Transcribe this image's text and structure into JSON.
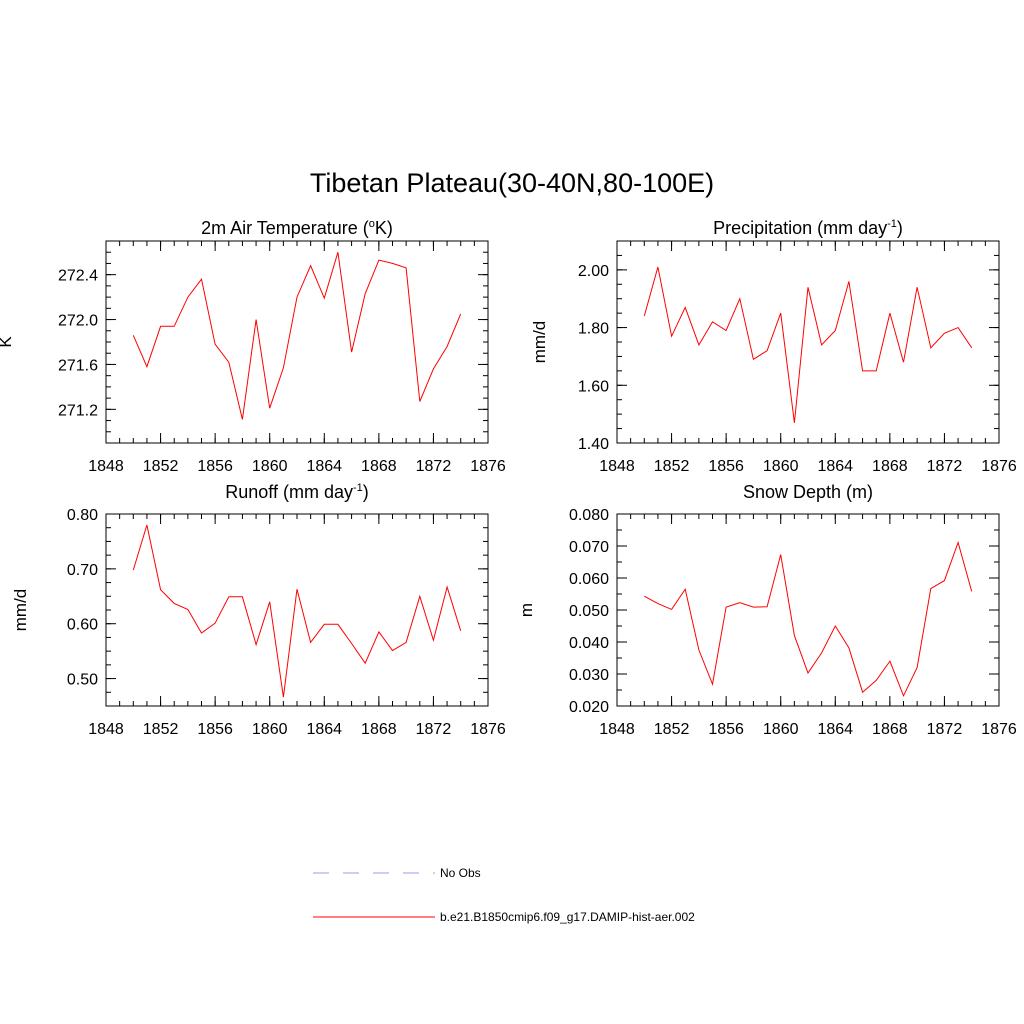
{
  "main_title": "Tibetan Plateau(30-40N,80-100E)",
  "legend": [
    {
      "label": "No Obs",
      "color": "#9999ee",
      "dashed": true
    },
    {
      "label": "b.e21.B1850cmip6.f09_g17.DAMIP-hist-aer.002",
      "color": "#ff0000",
      "dashed": false
    }
  ],
  "chart_data": [
    {
      "type": "line",
      "title_main": "2m Air Temperature (",
      "title_sup": "o",
      "title_tail": "K)",
      "ylabel": "K",
      "xlim": [
        1848,
        1876
      ],
      "xticks": [
        1848,
        1852,
        1856,
        1860,
        1864,
        1868,
        1872,
        1876
      ],
      "xminor": 1,
      "ylim": [
        270.9,
        272.7
      ],
      "yticks": [
        271.2,
        271.6,
        272.0,
        272.4
      ],
      "yminor": 0.1,
      "ydecimals": 1,
      "color": "#ff0000",
      "x": [
        1850,
        1851,
        1852,
        1853,
        1854,
        1855,
        1856,
        1857,
        1858,
        1859,
        1860,
        1861,
        1862,
        1863,
        1864,
        1865,
        1866,
        1867,
        1868,
        1869,
        1870,
        1871,
        1872,
        1873,
        1874
      ],
      "y": [
        271.86,
        271.58,
        271.94,
        271.94,
        272.2,
        272.36,
        271.78,
        271.62,
        271.11,
        272.0,
        271.21,
        271.57,
        272.2,
        272.48,
        272.19,
        272.6,
        271.71,
        272.23,
        272.53,
        272.5,
        272.46,
        271.27,
        271.56,
        271.76,
        272.05
      ]
    },
    {
      "type": "line",
      "title_main": "Precipitation (mm day",
      "title_sup": "-1",
      "title_tail": ")",
      "ylabel": "mm/d",
      "xlim": [
        1848,
        1876
      ],
      "xticks": [
        1848,
        1852,
        1856,
        1860,
        1864,
        1868,
        1872,
        1876
      ],
      "xminor": 1,
      "ylim": [
        1.4,
        2.1
      ],
      "yticks": [
        1.4,
        1.6,
        1.8,
        2.0
      ],
      "yminor": 0.05,
      "ydecimals": 2,
      "color": "#ff0000",
      "x": [
        1850,
        1851,
        1852,
        1853,
        1854,
        1855,
        1856,
        1857,
        1858,
        1859,
        1860,
        1861,
        1862,
        1863,
        1864,
        1865,
        1866,
        1867,
        1868,
        1869,
        1870,
        1871,
        1872,
        1873,
        1874
      ],
      "y": [
        1.84,
        2.01,
        1.77,
        1.87,
        1.74,
        1.82,
        1.79,
        1.9,
        1.69,
        1.72,
        1.85,
        1.47,
        1.94,
        1.74,
        1.79,
        1.96,
        1.65,
        1.65,
        1.85,
        1.68,
        1.94,
        1.73,
        1.78,
        1.8,
        1.73
      ]
    },
    {
      "type": "line",
      "title_main": "Runoff (mm day",
      "title_sup": "-1",
      "title_tail": ")",
      "ylabel": "mm/d",
      "xlim": [
        1848,
        1876
      ],
      "xticks": [
        1848,
        1852,
        1856,
        1860,
        1864,
        1868,
        1872,
        1876
      ],
      "xminor": 1,
      "ylim": [
        0.45,
        0.8
      ],
      "yticks": [
        0.5,
        0.6,
        0.7,
        0.8
      ],
      "yminor": 0.025,
      "ydecimals": 2,
      "color": "#ff0000",
      "x": [
        1850,
        1851,
        1852,
        1853,
        1854,
        1855,
        1856,
        1857,
        1858,
        1859,
        1860,
        1861,
        1862,
        1863,
        1864,
        1865,
        1866,
        1867,
        1868,
        1869,
        1870,
        1871,
        1872,
        1873,
        1874
      ],
      "y": [
        0.698,
        0.78,
        0.662,
        0.637,
        0.626,
        0.583,
        0.601,
        0.649,
        0.649,
        0.562,
        0.64,
        0.466,
        0.663,
        0.566,
        0.599,
        0.599,
        0.564,
        0.528,
        0.585,
        0.551,
        0.566,
        0.65,
        0.57,
        0.667,
        0.587
      ]
    },
    {
      "type": "line",
      "title_main": "Snow Depth (m)",
      "title_sup": "",
      "title_tail": "",
      "ylabel": "m",
      "xlim": [
        1848,
        1876
      ],
      "xticks": [
        1848,
        1852,
        1856,
        1860,
        1864,
        1868,
        1872,
        1876
      ],
      "xminor": 1,
      "ylim": [
        0.02,
        0.08
      ],
      "yticks": [
        0.02,
        0.03,
        0.04,
        0.05,
        0.06,
        0.07,
        0.08
      ],
      "yminor": 0.005,
      "ydecimals": 3,
      "color": "#ff0000",
      "x": [
        1850,
        1851,
        1852,
        1853,
        1854,
        1855,
        1856,
        1857,
        1858,
        1859,
        1860,
        1861,
        1862,
        1863,
        1864,
        1865,
        1866,
        1867,
        1868,
        1869,
        1870,
        1871,
        1872,
        1873,
        1874
      ],
      "y": [
        0.0543,
        0.052,
        0.0502,
        0.0565,
        0.0375,
        0.0268,
        0.0509,
        0.0523,
        0.0509,
        0.051,
        0.0673,
        0.042,
        0.0303,
        0.0366,
        0.045,
        0.0382,
        0.0243,
        0.028,
        0.034,
        0.0232,
        0.032,
        0.0567,
        0.0592,
        0.0711,
        0.0558
      ]
    }
  ]
}
